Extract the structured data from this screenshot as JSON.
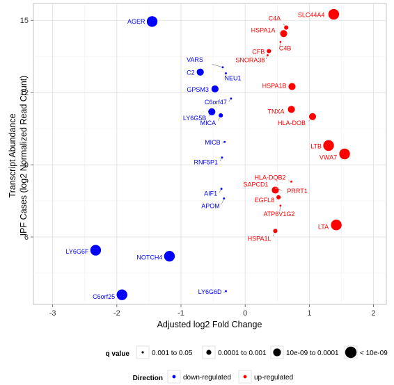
{
  "chart_data": {
    "type": "scatter",
    "xlabel": "Adjusted log2 Fold Change",
    "ylabel_lines": [
      "Transcript Abundance",
      "IPF Cases (log2 Normalized Read Count)"
    ],
    "xlim": [
      -3.3,
      2.2
    ],
    "ylim": [
      3.2,
      15.7
    ],
    "x_ticks": [
      -3,
      -2,
      -1,
      0,
      1,
      2
    ],
    "y_ticks": [
      6,
      9,
      12,
      15
    ],
    "grid": true,
    "colors": {
      "down": "#0000ff",
      "up": "#ff0000"
    },
    "points": [
      {
        "label": "AGER",
        "x": -1.45,
        "y": 14.95,
        "size": 4,
        "dir": "down"
      },
      {
        "label": "C2",
        "x": -0.7,
        "y": 12.85,
        "size": 3,
        "dir": "down"
      },
      {
        "label": "VARS",
        "x": -0.35,
        "y": 13.05,
        "size": 1,
        "dir": "down"
      },
      {
        "label": "NEU1",
        "x": -0.3,
        "y": 12.8,
        "size": 1,
        "dir": "down"
      },
      {
        "label": "GPSM3",
        "x": -0.47,
        "y": 12.15,
        "size": 3,
        "dir": "down"
      },
      {
        "label": "C6orf47",
        "x": -0.22,
        "y": 11.75,
        "size": 1,
        "dir": "down"
      },
      {
        "label": "LY6G5B",
        "x": -0.52,
        "y": 11.2,
        "size": 3,
        "dir": "down"
      },
      {
        "label": "MICA",
        "x": -0.38,
        "y": 11.05,
        "size": 2,
        "dir": "down"
      },
      {
        "label": "MICB",
        "x": -0.32,
        "y": 9.95,
        "size": 1,
        "dir": "down"
      },
      {
        "label": "RNF5P1",
        "x": -0.36,
        "y": 9.3,
        "size": 1,
        "dir": "down"
      },
      {
        "label": "AIF1",
        "x": -0.37,
        "y": 8.0,
        "size": 1,
        "dir": "down"
      },
      {
        "label": "APOM",
        "x": -0.33,
        "y": 7.6,
        "size": 1,
        "dir": "down"
      },
      {
        "label": "LY6G6F",
        "x": -2.33,
        "y": 5.45,
        "size": 4,
        "dir": "down"
      },
      {
        "label": "NOTCH4",
        "x": -1.18,
        "y": 5.2,
        "size": 4,
        "dir": "down"
      },
      {
        "label": "C6orf25",
        "x": -1.92,
        "y": 3.6,
        "size": 4,
        "dir": "down"
      },
      {
        "label": "LY6G6D",
        "x": -0.3,
        "y": 3.75,
        "size": 1,
        "dir": "down"
      },
      {
        "label": "SLC44A4",
        "x": 1.38,
        "y": 15.25,
        "size": 4,
        "dir": "up"
      },
      {
        "label": "C4A",
        "x": 0.64,
        "y": 14.7,
        "size": 2,
        "dir": "up"
      },
      {
        "label": "HSPA1A",
        "x": 0.6,
        "y": 14.45,
        "size": 3,
        "dir": "up"
      },
      {
        "label": "C4B",
        "x": 0.55,
        "y": 14.1,
        "size": 1,
        "dir": "up"
      },
      {
        "label": "CFB",
        "x": 0.37,
        "y": 13.72,
        "size": 2,
        "dir": "up"
      },
      {
        "label": "SNORA38",
        "x": 0.35,
        "y": 13.55,
        "size": 1,
        "dir": "up"
      },
      {
        "label": "HSPA1B",
        "x": 0.73,
        "y": 12.25,
        "size": 3,
        "dir": "up"
      },
      {
        "label": "TNXA",
        "x": 0.72,
        "y": 11.3,
        "size": 3,
        "dir": "up"
      },
      {
        "label": "HLA-DOB",
        "x": 1.05,
        "y": 11.0,
        "size": 3,
        "dir": "up"
      },
      {
        "label": "LTB",
        "x": 1.3,
        "y": 9.8,
        "size": 4,
        "dir": "up"
      },
      {
        "label": "VWA7",
        "x": 1.55,
        "y": 9.45,
        "size": 4,
        "dir": "up"
      },
      {
        "label": "HLA-DQB2",
        "x": 0.72,
        "y": 8.3,
        "size": 1,
        "dir": "up"
      },
      {
        "label": "SAPCD1",
        "x": 0.47,
        "y": 7.95,
        "size": 3,
        "dir": "up"
      },
      {
        "label": "PRRT1",
        "x": 0.48,
        "y": 8.05,
        "size": 1,
        "dir": "up"
      },
      {
        "label": "EGFL8",
        "x": 0.52,
        "y": 7.65,
        "size": 2,
        "dir": "up"
      },
      {
        "label": "ATP6V1G2",
        "x": 0.55,
        "y": 7.3,
        "size": 1,
        "dir": "up"
      },
      {
        "label": "HSPA1L",
        "x": 0.47,
        "y": 6.25,
        "size": 2,
        "dir": "up"
      },
      {
        "label": "LTA",
        "x": 1.42,
        "y": 6.5,
        "size": 4,
        "dir": "up"
      }
    ],
    "legend": {
      "qvalue_title": "q value",
      "qvalue_items": [
        {
          "label": "0.001 to 0.05",
          "size": 1
        },
        {
          "label": "0.0001 to 0.001",
          "size": 2
        },
        {
          "label": "10e-09 to 0.0001",
          "size": 3
        },
        {
          "label": "< 10e-09",
          "size": 4
        }
      ],
      "direction_title": "Direction",
      "direction_items": [
        {
          "label": "down-regulated",
          "dir": "down"
        },
        {
          "label": "up-regulated",
          "dir": "up"
        }
      ]
    }
  }
}
